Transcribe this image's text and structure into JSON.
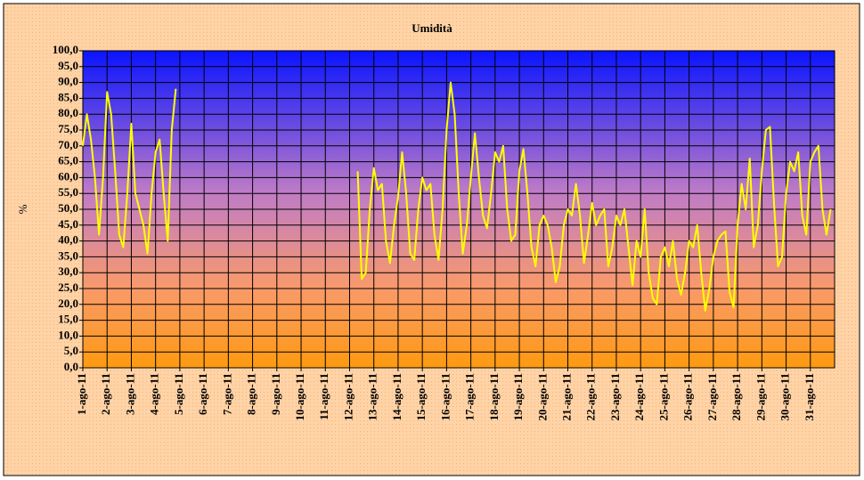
{
  "chart_data": {
    "type": "line",
    "title": "Umidità",
    "y_label": "%",
    "categories": [
      "1-ago-11",
      null,
      null,
      null,
      null,
      null,
      "2-ago-11",
      null,
      null,
      null,
      null,
      null,
      "3-ago-11",
      null,
      null,
      null,
      null,
      null,
      "4-ago-11",
      null,
      null,
      null,
      null,
      null,
      "5-ago-11",
      null,
      null,
      null,
      null,
      null,
      "6-ago-11",
      null,
      null,
      null,
      null,
      null,
      "7-ago-11",
      null,
      null,
      null,
      null,
      null,
      "8-ago-11",
      null,
      null,
      null,
      null,
      null,
      "9-ago-11",
      null,
      null,
      null,
      null,
      null,
      "10-ago-11",
      null,
      null,
      null,
      null,
      null,
      "11-ago-11",
      null,
      null,
      null,
      null,
      null,
      "12-ago-11",
      null,
      null,
      null,
      null,
      null,
      "13-ago-11",
      null,
      null,
      null,
      null,
      null,
      "14-ago-11",
      null,
      null,
      null,
      null,
      null,
      "15-ago-11",
      null,
      null,
      null,
      null,
      null,
      "16-ago-11",
      null,
      null,
      null,
      null,
      null,
      "17-ago-11",
      null,
      null,
      null,
      null,
      null,
      "18-ago-11",
      null,
      null,
      null,
      null,
      null,
      "19-ago-11",
      null,
      null,
      null,
      null,
      null,
      "20-ago-11",
      null,
      null,
      null,
      null,
      null,
      "21-ago-11",
      null,
      null,
      null,
      null,
      null,
      "22-ago-11",
      null,
      null,
      null,
      null,
      null,
      "23-ago-11",
      null,
      null,
      null,
      null,
      null,
      "24-ago-11",
      null,
      null,
      null,
      null,
      null,
      "25-ago-11",
      null,
      null,
      null,
      null,
      null,
      "26-ago-11",
      null,
      null,
      null,
      null,
      null,
      "27-ago-11",
      null,
      null,
      null,
      null,
      null,
      "28-ago-11",
      null,
      null,
      null,
      null,
      null,
      "29-ago-11",
      null,
      null,
      null,
      null,
      null,
      "30-ago-11",
      null,
      null,
      null,
      null,
      null,
      "31-ago-11",
      null,
      null,
      null,
      null,
      null
    ],
    "series": [
      {
        "name": "Umidità",
        "color": "#ffff00",
        "values": [
          70,
          80,
          72,
          60,
          42,
          60,
          87,
          80,
          62,
          42,
          38,
          55,
          77,
          55,
          50,
          45,
          36,
          55,
          68,
          72,
          55,
          40,
          75,
          88,
          null,
          null,
          null,
          null,
          null,
          null,
          null,
          null,
          null,
          null,
          null,
          null,
          null,
          null,
          null,
          null,
          null,
          null,
          null,
          null,
          null,
          null,
          null,
          null,
          null,
          null,
          null,
          null,
          null,
          null,
          null,
          null,
          null,
          null,
          null,
          null,
          null,
          null,
          null,
          null,
          null,
          null,
          null,
          null,
          62,
          28,
          30,
          50,
          63,
          56,
          58,
          40,
          33,
          45,
          54,
          68,
          55,
          36,
          34,
          50,
          60,
          56,
          58,
          42,
          34,
          50,
          75,
          90,
          80,
          55,
          36,
          45,
          60,
          74,
          60,
          48,
          44,
          55,
          68,
          65,
          70,
          50,
          40,
          42,
          62,
          69,
          55,
          38,
          32,
          45,
          48,
          45,
          38,
          27,
          32,
          45,
          50,
          48,
          58,
          48,
          33,
          42,
          52,
          45,
          48,
          50,
          32,
          38,
          48,
          45,
          50,
          38,
          26,
          40,
          35,
          50,
          30,
          22,
          20,
          35,
          38,
          32,
          40,
          28,
          23,
          30,
          40,
          38,
          45,
          30,
          18,
          25,
          35,
          40,
          42,
          43,
          24,
          19,
          45,
          58,
          50,
          66,
          38,
          45,
          62,
          75,
          76,
          52,
          32,
          35,
          55,
          65,
          62,
          68,
          48,
          42,
          65,
          68,
          70,
          50,
          42,
          50
        ]
      }
    ],
    "ylim": [
      0,
      100
    ],
    "yticks": [
      {
        "value": 0,
        "label": "0,0"
      },
      {
        "value": 5,
        "label": "5,0"
      },
      {
        "value": 10,
        "label": "10,0"
      },
      {
        "value": 15,
        "label": "15,0"
      },
      {
        "value": 20,
        "label": "20,0"
      },
      {
        "value": 25,
        "label": "25,0"
      },
      {
        "value": 30,
        "label": "30,0"
      },
      {
        "value": 35,
        "label": "35,0"
      },
      {
        "value": 40,
        "label": "40,0"
      },
      {
        "value": 45,
        "label": "45,0"
      },
      {
        "value": 50,
        "label": "50,0"
      },
      {
        "value": 55,
        "label": "55,0"
      },
      {
        "value": 60,
        "label": "60,0"
      },
      {
        "value": 65,
        "label": "65,0"
      },
      {
        "value": 70,
        "label": "70,0"
      },
      {
        "value": 75,
        "label": "75,0"
      },
      {
        "value": 80,
        "label": "80,0"
      },
      {
        "value": 85,
        "label": "85,0"
      },
      {
        "value": 90,
        "label": "90,0"
      },
      {
        "value": 95,
        "label": "95,0"
      },
      {
        "value": 100,
        "label": "100,0"
      }
    ],
    "grid": true
  }
}
